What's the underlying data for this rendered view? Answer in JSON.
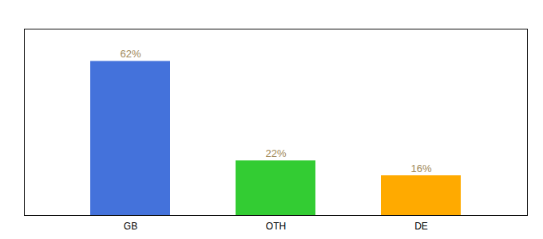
{
  "chart_data": {
    "type": "bar",
    "categories": [
      "GB",
      "OTH",
      "DE"
    ],
    "values": [
      62,
      22,
      16
    ],
    "value_labels": [
      "62%",
      "22%",
      "16%"
    ],
    "colors": [
      "#4472db",
      "#33cc33",
      "#ffaa00"
    ],
    "ylim": [
      0,
      75
    ],
    "data_labels": true,
    "tick_labels": "x",
    "grid": false
  }
}
